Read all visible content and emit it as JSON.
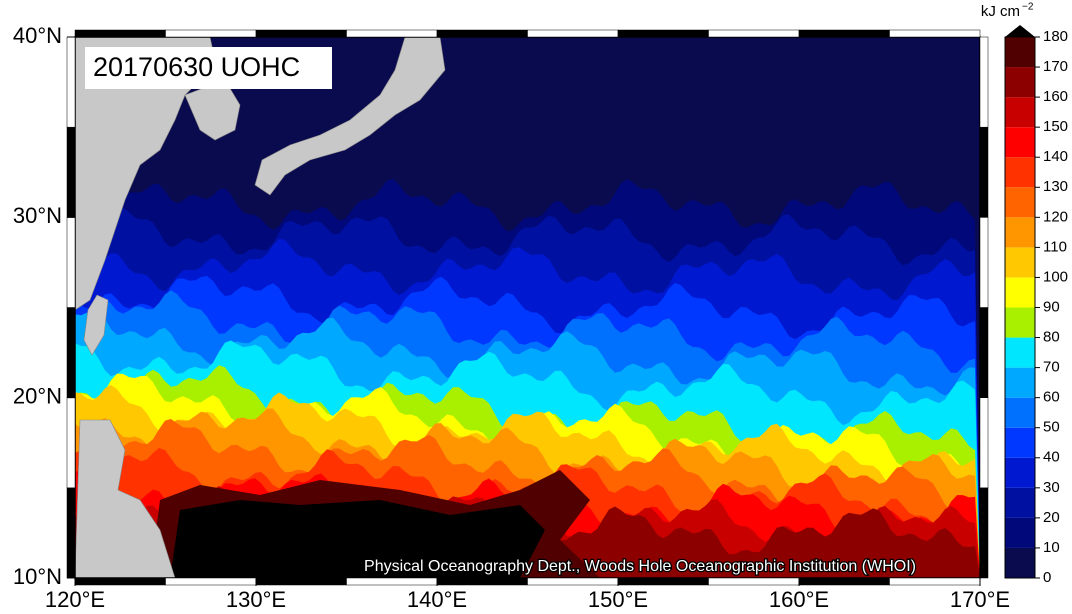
{
  "map": {
    "title": "20170630 UOHC",
    "credit": "Physical Oceanography Dept., Woods Hole Oceanographic Institution (WHOI)",
    "lon_lim": [
      120,
      170
    ],
    "lat_lim": [
      10,
      40
    ],
    "lon_ticks": [
      {
        "value": 120,
        "label": "120°E"
      },
      {
        "value": 130,
        "label": "130°E"
      },
      {
        "value": 140,
        "label": "140°E"
      },
      {
        "value": 150,
        "label": "150°E"
      },
      {
        "value": 160,
        "label": "160°E"
      },
      {
        "value": 170,
        "label": "170°E"
      }
    ],
    "lat_ticks": [
      {
        "value": 10,
        "label": "10°N"
      },
      {
        "value": 20,
        "label": "20°N"
      },
      {
        "value": 30,
        "label": "30°N"
      },
      {
        "value": 40,
        "label": "40°N"
      }
    ]
  },
  "colorbar": {
    "unit": "kJ cm",
    "unit_exponent": "−2",
    "lim": [
      0,
      180
    ],
    "ticks": [
      0,
      10,
      20,
      30,
      40,
      50,
      60,
      70,
      80,
      90,
      100,
      110,
      120,
      130,
      140,
      150,
      160,
      170,
      180
    ],
    "colors": [
      "#0a0a4e",
      "#00087a",
      "#0010a0",
      "#0018d0",
      "#0038ff",
      "#0070ff",
      "#00a8ff",
      "#00e6ff",
      "#a8f000",
      "#ffff00",
      "#ffc800",
      "#ff9600",
      "#ff6400",
      "#ff3200",
      "#ff0000",
      "#c80000",
      "#8c0000",
      "#500000"
    ],
    "over_color": "#000000"
  }
}
